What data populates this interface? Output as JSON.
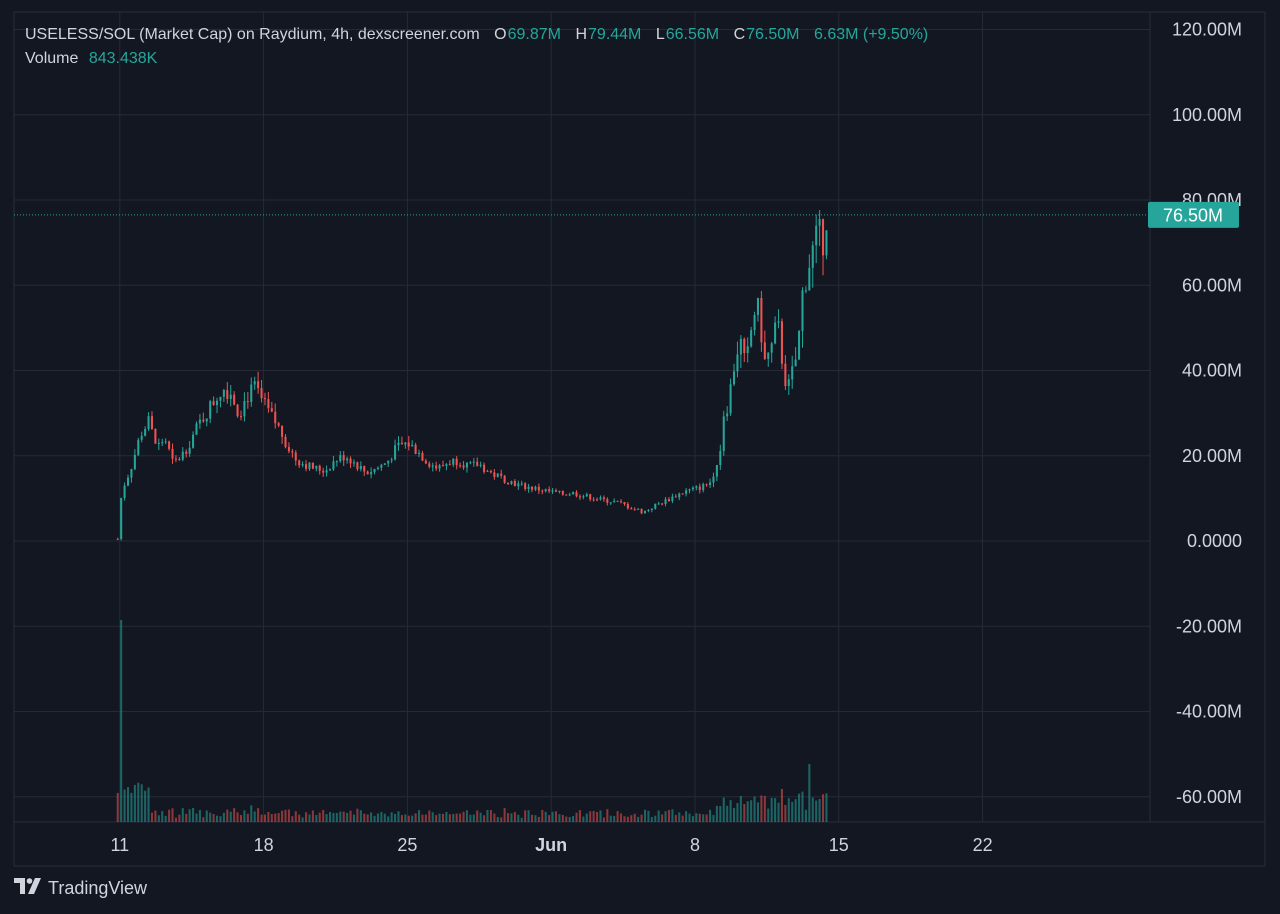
{
  "legend": {
    "title": "USELESS/SOL (Market Cap) on Raydium, 4h, dexscreener.com",
    "o_label": "O",
    "o_value": "69.87M",
    "h_label": "H",
    "h_value": "79.44M",
    "l_label": "L",
    "l_value": "66.56M",
    "c_label": "C",
    "c_value": "76.50M",
    "change": "6.63M (+9.50%)",
    "volume_label": "Volume",
    "volume_value": "843.438K"
  },
  "brand": {
    "name": "TradingView",
    "icon": "tradingview-logo-icon"
  },
  "colors": {
    "background": "#131722",
    "up": "#26a69a",
    "down": "#ef5350",
    "grid": "#262a36",
    "text": "#d1d4dc",
    "price_line": "#26a69a"
  },
  "chart_data": {
    "type": "candlestick",
    "title": "USELESS/SOL (Market Cap) on Raydium, 4h, dexscreener.com",
    "interval": "4h",
    "y_unit": "M",
    "ylim": [
      -66,
      120
    ],
    "y_ticks": [
      120,
      100,
      80,
      60,
      40,
      20,
      0,
      -20,
      -40,
      -60
    ],
    "y_tick_labels": [
      "120.00M",
      "100.00M",
      "80.00M",
      "60.00M",
      "40.00M",
      "20.00M",
      "0.0000",
      "-20.00M",
      "-40.00M",
      "-60.00M"
    ],
    "x_ticks": [
      {
        "label": "11",
        "day": 11
      },
      {
        "label": "18",
        "day": 18
      },
      {
        "label": "25",
        "day": 25
      },
      {
        "label": "Jun",
        "day": 32,
        "bold": true
      },
      {
        "label": "8",
        "day": 39
      },
      {
        "label": "15",
        "day": 46
      },
      {
        "label": "22",
        "day": 53
      }
    ],
    "x_day_range": [
      5.85,
      61.15
    ],
    "current_price": 76.5,
    "current_price_label": "76.50M",
    "grid": true,
    "daily_close_path": [
      [
        10.9,
        0.5
      ],
      [
        11.1,
        12
      ],
      [
        11.3,
        14
      ],
      [
        11.6,
        18
      ],
      [
        12.0,
        25
      ],
      [
        12.4,
        28
      ],
      [
        12.8,
        22
      ],
      [
        13.2,
        24
      ],
      [
        13.6,
        18
      ],
      [
        14.0,
        20
      ],
      [
        14.4,
        23
      ],
      [
        14.8,
        27
      ],
      [
        15.2,
        30
      ],
      [
        15.6,
        33
      ],
      [
        16.0,
        36
      ],
      [
        16.4,
        35
      ],
      [
        16.8,
        30
      ],
      [
        17.2,
        34
      ],
      [
        17.6,
        36
      ],
      [
        18.0,
        32
      ],
      [
        18.4,
        29
      ],
      [
        18.8,
        26
      ],
      [
        19.2,
        22
      ],
      [
        19.6,
        19
      ],
      [
        20.0,
        18
      ],
      [
        20.5,
        17
      ],
      [
        21.0,
        16.5
      ],
      [
        21.5,
        19
      ],
      [
        22.0,
        20
      ],
      [
        22.5,
        18
      ],
      [
        23.0,
        16
      ],
      [
        23.5,
        17
      ],
      [
        24.0,
        18.5
      ],
      [
        24.5,
        22
      ],
      [
        25.0,
        23
      ],
      [
        25.5,
        21
      ],
      [
        26.0,
        18.5
      ],
      [
        26.5,
        17
      ],
      [
        27.0,
        18.5
      ],
      [
        27.5,
        19
      ],
      [
        28.0,
        17.5
      ],
      [
        28.5,
        18
      ],
      [
        29.0,
        16
      ],
      [
        29.5,
        15
      ],
      [
        30.0,
        14
      ],
      [
        30.5,
        13
      ],
      [
        31.0,
        12.5
      ],
      [
        31.5,
        12
      ],
      [
        32.0,
        11.5
      ],
      [
        32.5,
        11
      ],
      [
        33.0,
        11.3
      ],
      [
        33.5,
        10.7
      ],
      [
        34.0,
        10.2
      ],
      [
        34.5,
        9.6
      ],
      [
        35.0,
        9.3
      ],
      [
        35.5,
        8.6
      ],
      [
        36.0,
        7.6
      ],
      [
        36.5,
        6.8
      ],
      [
        37.0,
        8.2
      ],
      [
        37.5,
        9.3
      ],
      [
        38.0,
        10.5
      ],
      [
        38.5,
        11.6
      ],
      [
        39.0,
        12.2
      ],
      [
        39.5,
        13
      ],
      [
        39.8,
        14
      ],
      [
        40.0,
        18
      ],
      [
        40.2,
        20
      ],
      [
        40.4,
        30
      ],
      [
        40.6,
        32
      ],
      [
        40.8,
        38
      ],
      [
        41.0,
        44
      ],
      [
        41.2,
        47
      ],
      [
        41.4,
        42
      ],
      [
        41.6,
        44
      ],
      [
        41.8,
        52
      ],
      [
        42.0,
        56
      ],
      [
        42.2,
        50
      ],
      [
        42.4,
        42
      ],
      [
        42.6,
        44
      ],
      [
        42.8,
        46
      ],
      [
        43.0,
        52
      ],
      [
        43.2,
        44
      ],
      [
        43.4,
        38
      ],
      [
        43.6,
        36
      ],
      [
        43.8,
        41
      ],
      [
        44.0,
        44
      ],
      [
        44.2,
        57
      ],
      [
        44.4,
        62
      ],
      [
        44.6,
        66
      ],
      [
        44.8,
        69
      ],
      [
        45.0,
        72
      ],
      [
        45.2,
        69.9
      ],
      [
        45.4,
        76.5
      ]
    ],
    "notable_extremes": {
      "all_time_high": 81.5,
      "volume_spike_day": 11
    }
  }
}
